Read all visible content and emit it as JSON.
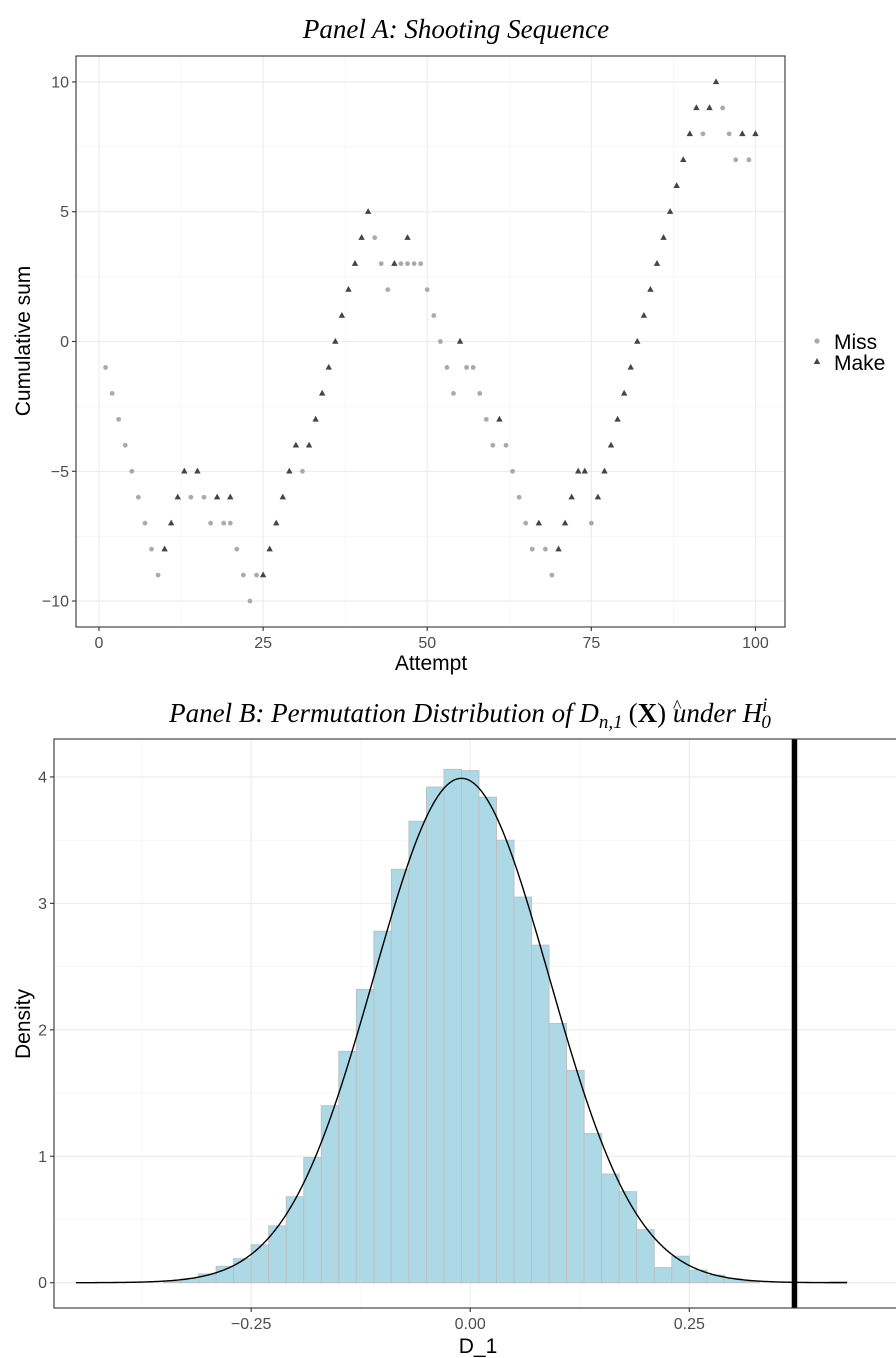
{
  "chart_data": [
    {
      "type": "scatter",
      "title": "Panel A: Shooting Sequence",
      "xlabel": "Attempt",
      "ylabel": "Cumulative sum",
      "xlim": [
        -3.5,
        104.5
      ],
      "ylim": [
        -11,
        11
      ],
      "x_ticks": [
        0,
        25,
        50,
        75,
        100
      ],
      "y_ticks": [
        -10,
        -5,
        0,
        5,
        10
      ],
      "grid": true,
      "legend": {
        "placement": "right",
        "entries": [
          {
            "name": "Miss",
            "shape": "circle",
            "color": "#aaaaaa"
          },
          {
            "name": "Make",
            "shape": "triangle",
            "color": "#444444"
          }
        ]
      },
      "series": [
        {
          "name": "Miss",
          "x": [
            1,
            2,
            3,
            4,
            5,
            6,
            7,
            8,
            9,
            14,
            16,
            17,
            19,
            20,
            21,
            22,
            23,
            24,
            31,
            42,
            43,
            44,
            46,
            47,
            48,
            49,
            50,
            51,
            52,
            53,
            54,
            56,
            57,
            58,
            59,
            60,
            62,
            63,
            64,
            65,
            66,
            68,
            69,
            75,
            92,
            95,
            96,
            97,
            99
          ],
          "y": [
            -1,
            -2,
            -3,
            -4,
            -5,
            -6,
            -7,
            -8,
            -9,
            -6,
            -6,
            -7,
            -7,
            -7,
            -8,
            -9,
            -10,
            -9,
            -5,
            4,
            3,
            2,
            3,
            3,
            3,
            3,
            2,
            1,
            0,
            -1,
            -2,
            -1,
            -1,
            -2,
            -3,
            -4,
            -4,
            -5,
            -6,
            -7,
            -8,
            -8,
            -9,
            -7,
            8,
            9,
            8,
            7,
            7
          ]
        },
        {
          "name": "Make",
          "x": [
            10,
            11,
            12,
            13,
            15,
            18,
            20,
            25,
            26,
            27,
            28,
            29,
            30,
            32,
            33,
            34,
            35,
            36,
            37,
            38,
            39,
            40,
            41,
            45,
            47,
            55,
            61,
            67,
            70,
            71,
            72,
            73,
            74,
            76,
            77,
            78,
            79,
            80,
            81,
            82,
            83,
            84,
            85,
            86,
            87,
            88,
            89,
            90,
            91,
            93,
            94,
            98,
            100
          ],
          "y": [
            -8,
            -7,
            -6,
            -5,
            -5,
            -6,
            -6,
            -9,
            -8,
            -7,
            -6,
            -5,
            -4,
            -4,
            -3,
            -2,
            -1,
            0,
            1,
            2,
            3,
            4,
            5,
            3,
            4,
            0,
            -3,
            -7,
            -8,
            -7,
            -6,
            -5,
            -5,
            -6,
            -5,
            -4,
            -3,
            -2,
            -1,
            0,
            1,
            2,
            3,
            4,
            5,
            6,
            7,
            8,
            9,
            9,
            10,
            8,
            8
          ]
        }
      ]
    },
    {
      "type": "bar",
      "title_parts": {
        "prefix": "Panel B: Permutation Distribution of ",
        "dhat": "D",
        "hat": "^",
        "sub": "n,1",
        "open": "(",
        "bold": "X",
        "close": ")",
        "middle": " under ",
        "h": "H",
        "sup": "i",
        "hsub": "0"
      },
      "xlabel": "D_1",
      "ylabel": "Density",
      "xlim": [
        -0.475,
        0.495
      ],
      "ylim": [
        -0.2,
        4.3
      ],
      "x_ticks": [
        -0.25,
        0.0,
        0.25
      ],
      "x_tick_labels": [
        "−0.25",
        "0.00",
        "0.25"
      ],
      "y_ticks": [
        0,
        1,
        2,
        3,
        4
      ],
      "grid": true,
      "bin_width": 0.02,
      "bin_centers": [
        -0.44,
        -0.42,
        -0.4,
        -0.38,
        -0.36,
        -0.34,
        -0.32,
        -0.3,
        -0.28,
        -0.26,
        -0.24,
        -0.22,
        -0.2,
        -0.18,
        -0.16,
        -0.14,
        -0.12,
        -0.1,
        -0.08,
        -0.06,
        -0.04,
        -0.02,
        0.0,
        0.02,
        0.04,
        0.06,
        0.08,
        0.1,
        0.12,
        0.14,
        0.16,
        0.18,
        0.2,
        0.22,
        0.24,
        0.26,
        0.28,
        0.3,
        0.32,
        0.34,
        0.36,
        0.38,
        0.4,
        0.42
      ],
      "values": [
        0,
        0,
        0,
        0,
        0,
        0.01,
        0.03,
        0.07,
        0.13,
        0.19,
        0.3,
        0.45,
        0.68,
        0.99,
        1.4,
        1.83,
        2.32,
        2.78,
        3.27,
        3.65,
        3.92,
        4.06,
        4.05,
        3.84,
        3.5,
        3.05,
        2.67,
        2.05,
        1.68,
        1.18,
        0.86,
        0.72,
        0.42,
        0.12,
        0.21,
        0.1,
        0.06,
        0.03,
        0.01,
        0,
        0,
        0,
        0,
        0.01
      ],
      "bar_fill": "#add8e6",
      "bar_stroke": "#bebebe",
      "normal_curve": {
        "mean": -0.01,
        "sd": 0.1
      },
      "observed_line": {
        "x": 0.37,
        "color": "#000000"
      }
    }
  ]
}
